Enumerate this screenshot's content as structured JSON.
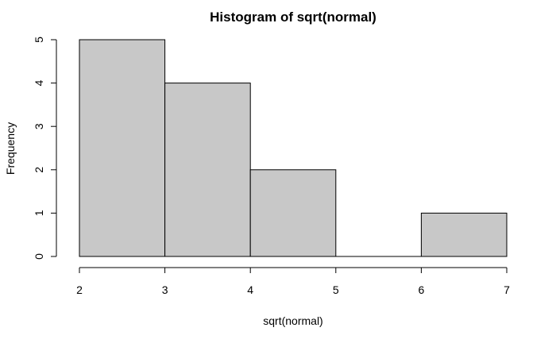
{
  "chart_data": {
    "type": "bar",
    "title": "Histogram of sqrt(normal)",
    "xlabel": "sqrt(normal)",
    "ylabel": "Frequency",
    "bins": [
      [
        2,
        3
      ],
      [
        3,
        4
      ],
      [
        4,
        5
      ],
      [
        5,
        6
      ],
      [
        6,
        7
      ]
    ],
    "values": [
      5,
      4,
      2,
      0,
      1
    ],
    "xlim": [
      2,
      7
    ],
    "ylim": [
      0,
      5
    ],
    "xticks": [
      2,
      3,
      4,
      5,
      6,
      7
    ],
    "yticks": [
      0,
      1,
      2,
      3,
      4,
      5
    ],
    "bar_color": "#c8c8c8",
    "border_color": "#000000",
    "grid": false
  }
}
